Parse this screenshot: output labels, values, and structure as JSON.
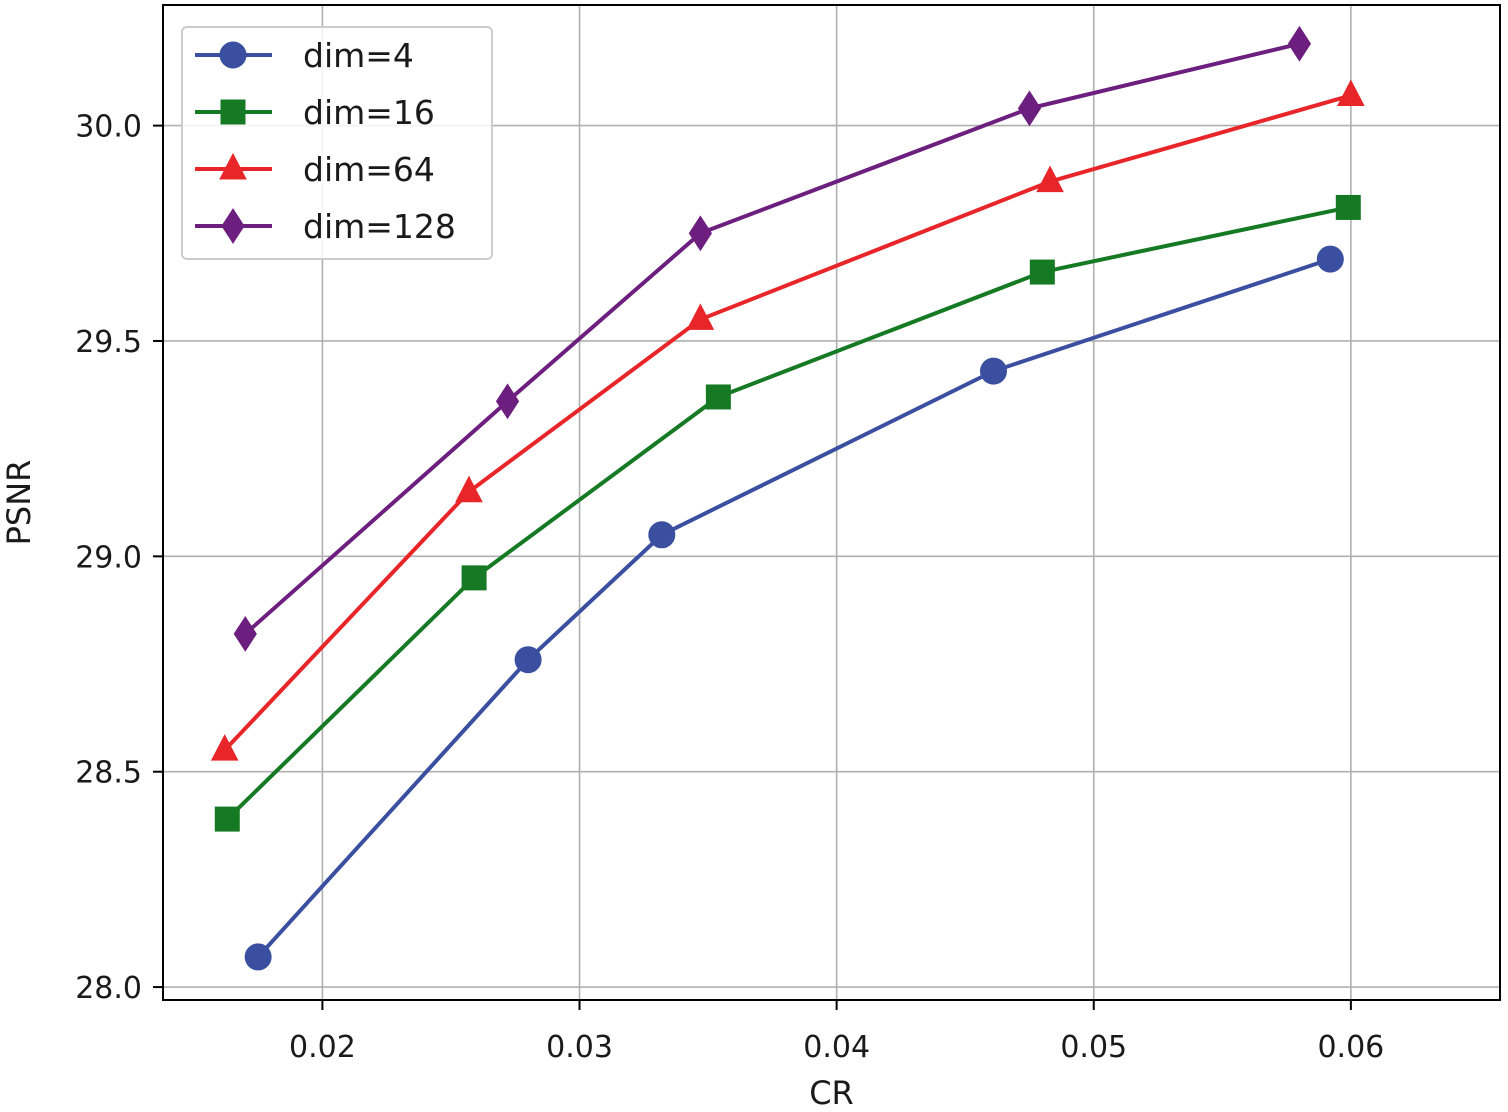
{
  "chart_data": {
    "type": "line",
    "title": "",
    "xlabel": "CR",
    "ylabel": "PSNR",
    "xlim": [
      0.0138,
      0.0658
    ],
    "ylim": [
      27.97,
      30.28
    ],
    "xticks": [
      0.02,
      0.03,
      0.04,
      0.05,
      0.06
    ],
    "xtick_labels": [
      "0.02",
      "0.03",
      "0.04",
      "0.05",
      "0.06"
    ],
    "yticks": [
      28.0,
      28.5,
      29.0,
      29.5,
      30.0
    ],
    "ytick_labels": [
      "28.0",
      "28.5",
      "29.0",
      "29.5",
      "30.0"
    ],
    "grid": true,
    "legend_position": "top-left",
    "series": [
      {
        "name": "dim=4",
        "color": "#3a4fa0",
        "marker": "circle",
        "x": [
          0.0175,
          0.028,
          0.0332,
          0.0461,
          0.0592
        ],
        "y": [
          28.07,
          28.76,
          29.05,
          29.43,
          29.69
        ]
      },
      {
        "name": "dim=16",
        "color": "#167a24",
        "marker": "square",
        "x": [
          0.0163,
          0.0259,
          0.0354,
          0.048,
          0.0599
        ],
        "y": [
          28.39,
          28.95,
          29.37,
          29.66,
          29.81
        ]
      },
      {
        "name": "dim=64",
        "color": "#e8262a",
        "marker": "triangle",
        "x": [
          0.0162,
          0.0257,
          0.0347,
          0.0483,
          0.06
        ],
        "y": [
          28.55,
          29.15,
          29.55,
          29.87,
          30.07
        ]
      },
      {
        "name": "dim=128",
        "color": "#6c1f7e",
        "marker": "diamond",
        "x": [
          0.017,
          0.0272,
          0.0347,
          0.0475,
          0.058
        ],
        "y": [
          28.82,
          29.36,
          29.75,
          30.04,
          30.19
        ]
      }
    ]
  }
}
